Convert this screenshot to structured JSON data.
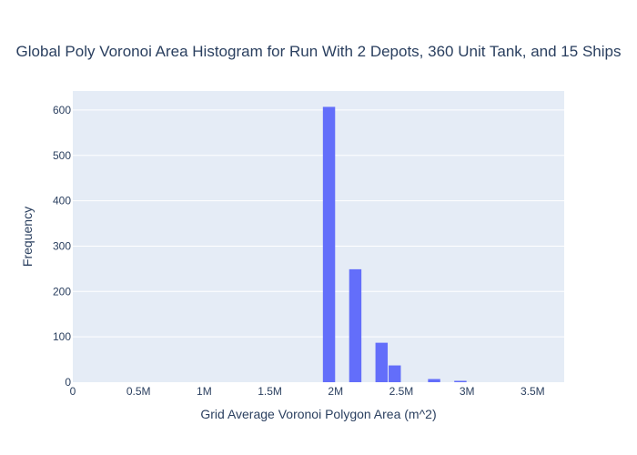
{
  "chart_data": {
    "type": "bar",
    "title": "Global Poly Voronoi Area Histogram for Run With 2 Depots, 360 Unit Tank, and 15 Ships",
    "xlabel": "Grid Average Voronoi Polygon Area (m^2)",
    "ylabel": "Frequency",
    "xlim": [
      0,
      3740000
    ],
    "ylim": [
      0,
      642
    ],
    "bin_width": 100000,
    "x_ticks": [
      {
        "value": 0,
        "label": "0"
      },
      {
        "value": 500000,
        "label": "0.5M"
      },
      {
        "value": 1000000,
        "label": "1M"
      },
      {
        "value": 1500000,
        "label": "1.5M"
      },
      {
        "value": 2000000,
        "label": "2M"
      },
      {
        "value": 2500000,
        "label": "2.5M"
      },
      {
        "value": 3000000,
        "label": "3M"
      },
      {
        "value": 3500000,
        "label": "3.5M"
      }
    ],
    "y_ticks": [
      {
        "value": 0,
        "label": "0"
      },
      {
        "value": 100,
        "label": "100"
      },
      {
        "value": 200,
        "label": "200"
      },
      {
        "value": 300,
        "label": "300"
      },
      {
        "value": 400,
        "label": "400"
      },
      {
        "value": 500,
        "label": "500"
      },
      {
        "value": 600,
        "label": "600"
      }
    ],
    "bins": [
      {
        "x0": 1900000,
        "x1": 2000000,
        "count": 607
      },
      {
        "x0": 2100000,
        "x1": 2200000,
        "count": 249
      },
      {
        "x0": 2300000,
        "x1": 2400000,
        "count": 87
      },
      {
        "x0": 2400000,
        "x1": 2500000,
        "count": 37
      },
      {
        "x0": 2700000,
        "x1": 2800000,
        "count": 7
      },
      {
        "x0": 2900000,
        "x1": 3000000,
        "count": 3
      }
    ],
    "grid": true,
    "colors": {
      "bar": "#636efa",
      "plot_bg": "#e5ecf6",
      "grid": "#ffffff",
      "text": "#2a3f5f"
    }
  }
}
